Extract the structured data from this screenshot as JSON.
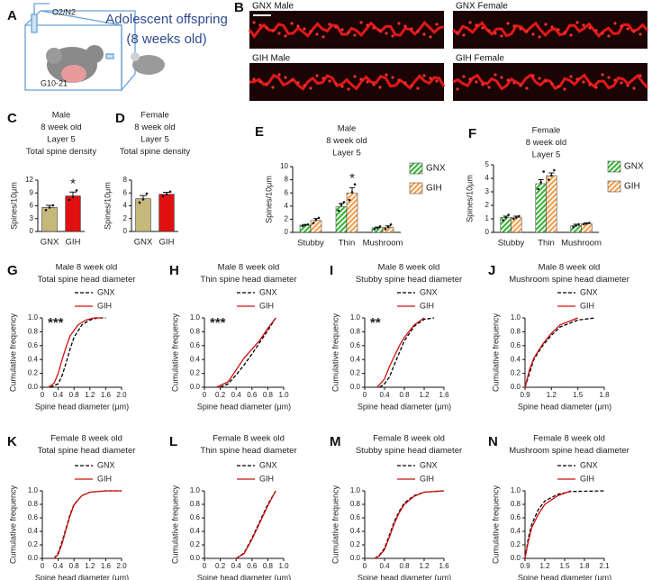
{
  "panel_a": {
    "letter": "A",
    "gas": "O2/N2",
    "caption": [
      "Adolescent offspring",
      "(8 weeks old)"
    ],
    "gestation": "G10-21"
  },
  "panel_b": {
    "letter": "B",
    "images": [
      "GNX Male",
      "GNX Female",
      "GIH Male",
      "GIH Female"
    ]
  },
  "chart_data": [
    {
      "type": "bar",
      "letter": "C",
      "title": [
        "Male",
        "8 week old",
        "Layer 5",
        "Total spine density"
      ],
      "ylabel": "Spines/10μm",
      "categories": [
        "GNX",
        "GIH"
      ],
      "values": [
        5.6,
        8.3
      ],
      "errors": [
        0.5,
        0.9
      ],
      "points": [
        [
          5.0,
          5.6,
          6.1
        ],
        [
          7.4,
          8.1,
          9.6
        ]
      ],
      "colors": [
        "#c4b87a",
        "#e01010"
      ],
      "ylim": [
        0,
        12
      ],
      "yticks": [
        0,
        3,
        6,
        9,
        12
      ],
      "annotations": [
        {
          "text": "*",
          "x": "GIH"
        }
      ]
    },
    {
      "type": "bar",
      "letter": "D",
      "title": [
        "Female",
        "8 week old",
        "Layer 5",
        "Total spine density"
      ],
      "ylabel": "Spines/10μm",
      "categories": [
        "GNX",
        "GIH"
      ],
      "values": [
        5.1,
        5.8
      ],
      "errors": [
        0.5,
        0.3
      ],
      "points": [
        [
          4.5,
          5.0,
          5.9
        ],
        [
          5.5,
          5.8,
          6.2
        ]
      ],
      "colors": [
        "#c4b87a",
        "#e01010"
      ],
      "ylim": [
        0,
        8
      ],
      "yticks": [
        0,
        2,
        4,
        6,
        8
      ],
      "annotations": []
    },
    {
      "type": "grouped_bar",
      "letter": "E",
      "title": [
        "Male",
        "8 week old",
        "Layer 5"
      ],
      "ylabel": "Spines/10μm",
      "categories": [
        "Stubby",
        "Thin",
        "Mushroom"
      ],
      "hatch": true,
      "series": [
        {
          "name": "GNX",
          "color": "#3cb43c",
          "values": [
            1.1,
            3.9,
            0.7
          ],
          "errors": [
            0.1,
            0.5,
            0.1
          ],
          "points": [
            [
              1.0,
              1.1,
              1.2
            ],
            [
              3.3,
              4.2,
              4.6
            ],
            [
              0.5,
              0.7,
              0.9
            ]
          ]
        },
        {
          "name": "GIH",
          "color": "#f0a050",
          "values": [
            1.8,
            6.0,
            0.8
          ],
          "errors": [
            0.3,
            0.8,
            0.2
          ],
          "points": [
            [
              1.4,
              1.9,
              2.2
            ],
            [
              4.9,
              6.1,
              7.3
            ],
            [
              0.5,
              0.8,
              1.2
            ]
          ]
        }
      ],
      "ylim": [
        0,
        10
      ],
      "yticks": [
        0,
        2,
        4,
        6,
        8,
        10
      ],
      "annotations": [
        {
          "text": "*",
          "x": "Thin",
          "series": "GIH"
        }
      ]
    },
    {
      "type": "grouped_bar",
      "letter": "F",
      "title": [
        "Female",
        "8 week old",
        "Layer 5"
      ],
      "ylabel": "Spines/10μm",
      "categories": [
        "Stubby",
        "Thin",
        "Mushroom"
      ],
      "hatch": true,
      "series": [
        {
          "name": "GNX",
          "color": "#3cb43c",
          "values": [
            1.1,
            3.6,
            0.5
          ],
          "errors": [
            0.1,
            0.3,
            0.1
          ],
          "points": [
            [
              0.9,
              1.1,
              1.3
            ],
            [
              3.2,
              3.7,
              4.5
            ],
            [
              0.4,
              0.5,
              0.6
            ]
          ]
        },
        {
          "name": "GIH",
          "color": "#f0a050",
          "values": [
            1.1,
            4.2,
            0.65
          ],
          "errors": [
            0.1,
            0.2,
            0.05
          ],
          "points": [
            [
              1.0,
              1.1,
              1.2
            ],
            [
              3.9,
              4.2,
              4.6
            ],
            [
              0.6,
              0.65,
              0.7
            ]
          ]
        }
      ],
      "ylim": [
        0,
        5
      ],
      "yticks": [
        0,
        1,
        2,
        3,
        4,
        5
      ],
      "annotations": []
    },
    {
      "type": "line",
      "letter": "G",
      "title": [
        "Male 8 week old",
        "Total spine head diameter"
      ],
      "xlabel": "Spine head diameter (µm)",
      "ylabel": "Cumulative frequency",
      "xlim": [
        0,
        2
      ],
      "xticks": [
        0,
        0.4,
        0.8,
        1.2,
        1.6,
        {
          "value": 2,
          "label": "2.0"
        }
      ],
      "ylim": [
        0,
        1
      ],
      "yticks": [
        {
          "value": 0,
          "label": "0.0"
        },
        0.2,
        0.4,
        0.6,
        0.8,
        {
          "value": 1,
          "label": "1.0"
        }
      ],
      "annotations": [
        {
          "text": "***"
        }
      ],
      "series": [
        {
          "name": "GNX",
          "color": "#000000",
          "style": "dashed",
          "x": [
            0.2,
            0.4,
            0.5,
            0.6,
            0.7,
            0.8,
            1.0,
            1.2,
            1.4,
            1.6
          ],
          "values": [
            0,
            0.05,
            0.17,
            0.35,
            0.55,
            0.72,
            0.9,
            0.97,
            1.0,
            1.0
          ]
        },
        {
          "name": "GIH",
          "color": "#d01010",
          "style": "solid",
          "x": [
            0.15,
            0.3,
            0.4,
            0.5,
            0.6,
            0.7,
            0.9,
            1.1,
            1.3,
            1.5
          ],
          "values": [
            0,
            0.06,
            0.2,
            0.4,
            0.58,
            0.74,
            0.9,
            0.97,
            1.0,
            1.0
          ]
        }
      ]
    },
    {
      "type": "line",
      "letter": "H",
      "title": [
        "Male 8 week old",
        "Thin spine head diameter"
      ],
      "xlabel": "Spine head diameter (µm)",
      "ylabel": "Cumulative frequency",
      "xlim": [
        0,
        1
      ],
      "xticks": [
        0,
        0.2,
        0.4,
        0.6,
        0.8,
        {
          "value": 1,
          "label": "1.0"
        }
      ],
      "ylim": [
        0,
        1
      ],
      "yticks": [
        {
          "value": 0,
          "label": "0.0"
        },
        0.2,
        0.4,
        0.6,
        0.8,
        {
          "value": 1,
          "label": "1.0"
        }
      ],
      "annotations": [
        {
          "text": "***"
        }
      ],
      "series": [
        {
          "name": "GNX",
          "color": "#000000",
          "style": "dashed",
          "x": [
            0.2,
            0.3,
            0.4,
            0.5,
            0.6,
            0.7,
            0.8,
            0.9
          ],
          "values": [
            0,
            0.05,
            0.18,
            0.32,
            0.48,
            0.65,
            0.82,
            1.0
          ]
        },
        {
          "name": "GIH",
          "color": "#d01010",
          "style": "solid",
          "x": [
            0.15,
            0.3,
            0.4,
            0.5,
            0.6,
            0.7,
            0.8,
            0.9
          ],
          "values": [
            0,
            0.08,
            0.25,
            0.42,
            0.55,
            0.68,
            0.85,
            1.0
          ]
        }
      ]
    },
    {
      "type": "line",
      "letter": "I",
      "title": [
        "Male 8 week old",
        "Stubby spine head diameter"
      ],
      "xlabel": "Spine head diameter (µm)",
      "ylabel": "Cumulative frequency",
      "xlim": [
        0,
        1.6
      ],
      "xticks": [
        0,
        0.4,
        0.8,
        1.2,
        1.6
      ],
      "ylim": [
        0,
        1
      ],
      "yticks": [
        {
          "value": 0,
          "label": "0.0"
        },
        0.2,
        0.4,
        0.6,
        0.8,
        {
          "value": 1,
          "label": "1.0"
        }
      ],
      "annotations": [
        {
          "text": "**"
        }
      ],
      "series": [
        {
          "name": "GNX",
          "color": "#000000",
          "style": "dashed",
          "x": [
            0.3,
            0.4,
            0.5,
            0.6,
            0.7,
            0.8,
            1.0,
            1.2,
            1.4
          ],
          "values": [
            0,
            0.05,
            0.15,
            0.33,
            0.5,
            0.67,
            0.88,
            0.98,
            1.0
          ]
        },
        {
          "name": "GIH",
          "color": "#d01010",
          "style": "solid",
          "x": [
            0.25,
            0.4,
            0.5,
            0.6,
            0.7,
            0.8,
            1.0,
            1.2
          ],
          "values": [
            0,
            0.12,
            0.3,
            0.45,
            0.6,
            0.72,
            0.9,
            1.0
          ]
        }
      ]
    },
    {
      "type": "line",
      "letter": "J",
      "title": [
        "Male 8 week old",
        "Mushroom spine head diameter"
      ],
      "xlabel": "Spine head diameter (µm)",
      "ylabel": "Cumulative frequency",
      "xlim": [
        0.9,
        1.8
      ],
      "xticks": [
        0.9,
        1.2,
        1.5,
        1.8
      ],
      "ylim": [
        0,
        1
      ],
      "yticks": [
        {
          "value": 0,
          "label": "0.0"
        },
        0.2,
        0.4,
        0.6,
        0.8,
        {
          "value": 1,
          "label": "1.0"
        }
      ],
      "annotations": [],
      "series": [
        {
          "name": "GNX",
          "color": "#000000",
          "style": "dashed",
          "x": [
            0.9,
            0.95,
            1.0,
            1.1,
            1.2,
            1.3,
            1.5,
            1.7
          ],
          "values": [
            0,
            0.2,
            0.4,
            0.6,
            0.75,
            0.87,
            0.97,
            1.0
          ]
        },
        {
          "name": "GIH",
          "color": "#d01010",
          "style": "solid",
          "x": [
            0.9,
            0.95,
            1.0,
            1.1,
            1.2,
            1.3,
            1.5
          ],
          "values": [
            0,
            0.25,
            0.42,
            0.62,
            0.78,
            0.9,
            1.0
          ]
        }
      ]
    },
    {
      "type": "line",
      "letter": "K",
      "title": [
        "Female 8 week old",
        "Total spine head diameter"
      ],
      "xlabel": "Spine head diameter (µm)",
      "ylabel": "Cumulative frequency",
      "xlim": [
        0,
        2
      ],
      "xticks": [
        0,
        0.4,
        0.8,
        1.2,
        1.6,
        {
          "value": 2,
          "label": "2.0"
        }
      ],
      "ylim": [
        0,
        1
      ],
      "yticks": [
        {
          "value": 0,
          "label": "0.0"
        },
        0.2,
        0.4,
        0.6,
        0.8,
        {
          "value": 1,
          "label": "1.0"
        }
      ],
      "annotations": [],
      "series": [
        {
          "name": "GNX",
          "color": "#000000",
          "style": "dashed",
          "x": [
            0.3,
            0.4,
            0.5,
            0.6,
            0.7,
            0.8,
            1.0,
            1.2,
            1.6,
            2.0
          ],
          "values": [
            0,
            0.08,
            0.25,
            0.45,
            0.65,
            0.8,
            0.93,
            0.98,
            1.0,
            1.0
          ]
        },
        {
          "name": "GIH",
          "color": "#d01010",
          "style": "solid",
          "x": [
            0.3,
            0.4,
            0.5,
            0.6,
            0.7,
            0.8,
            1.0,
            1.2,
            1.6,
            2.0
          ],
          "values": [
            0,
            0.06,
            0.22,
            0.43,
            0.63,
            0.79,
            0.93,
            0.98,
            1.0,
            1.0
          ]
        }
      ]
    },
    {
      "type": "line",
      "letter": "L",
      "title": [
        "Female 8 week old",
        "Thin spine head diameter"
      ],
      "xlabel": "Spine head diameter (µm)",
      "ylabel": "Cumulative frequency",
      "xlim": [
        0,
        1
      ],
      "xticks": [
        0,
        0.2,
        0.4,
        0.6,
        0.8,
        {
          "value": 1,
          "label": "1.0"
        }
      ],
      "ylim": [
        0,
        1
      ],
      "yticks": [
        {
          "value": 0,
          "label": "0.0"
        },
        0.2,
        0.4,
        0.6,
        0.8,
        {
          "value": 1,
          "label": "1.0"
        }
      ],
      "annotations": [],
      "series": [
        {
          "name": "GNX",
          "color": "#000000",
          "style": "dashed",
          "x": [
            0.4,
            0.5,
            0.6,
            0.7,
            0.8,
            0.9
          ],
          "values": [
            0,
            0.08,
            0.3,
            0.55,
            0.8,
            1.0
          ]
        },
        {
          "name": "GIH",
          "color": "#d01010",
          "style": "solid",
          "x": [
            0.4,
            0.5,
            0.6,
            0.7,
            0.8,
            0.9
          ],
          "values": [
            0,
            0.07,
            0.28,
            0.53,
            0.78,
            1.0
          ]
        }
      ]
    },
    {
      "type": "line",
      "letter": "M",
      "title": [
        "Female 8 week old",
        "Stubby spine head diameter"
      ],
      "xlabel": "Spine head diameter (µm)",
      "ylabel": "Cumulative frequency",
      "xlim": [
        0,
        1.6
      ],
      "xticks": [
        0,
        0.4,
        0.8,
        1.2,
        1.6
      ],
      "ylim": [
        0,
        1
      ],
      "yticks": [
        {
          "value": 0,
          "label": "0.0"
        },
        0.2,
        0.4,
        0.6,
        0.8,
        {
          "value": 1,
          "label": "1.0"
        }
      ],
      "annotations": [],
      "series": [
        {
          "name": "GNX",
          "color": "#000000",
          "style": "dashed",
          "x": [
            0.2,
            0.3,
            0.4,
            0.5,
            0.6,
            0.7,
            0.8,
            1.0,
            1.2,
            1.6
          ],
          "values": [
            0,
            0.05,
            0.15,
            0.35,
            0.55,
            0.7,
            0.82,
            0.93,
            0.98,
            1.0
          ]
        },
        {
          "name": "GIH",
          "color": "#d01010",
          "style": "solid",
          "x": [
            0.2,
            0.3,
            0.4,
            0.5,
            0.6,
            0.7,
            0.8,
            1.0,
            1.2,
            1.6
          ],
          "values": [
            0,
            0.04,
            0.13,
            0.32,
            0.52,
            0.68,
            0.8,
            0.92,
            0.98,
            1.0
          ]
        }
      ]
    },
    {
      "type": "line",
      "letter": "N",
      "title": [
        "Female 8 week old",
        "Mushroom spine head diameter"
      ],
      "xlabel": "Spine head diameter (µm)",
      "ylabel": "Cumulative frequency",
      "xlim": [
        0.9,
        2.1
      ],
      "xticks": [
        0.9,
        1.2,
        1.5,
        1.8,
        2.1
      ],
      "ylim": [
        0,
        1
      ],
      "yticks": [
        {
          "value": 0,
          "label": "0.0"
        },
        0.2,
        0.4,
        0.6,
        0.8,
        {
          "value": 1,
          "label": "1.0"
        }
      ],
      "annotations": [],
      "series": [
        {
          "name": "GNX",
          "color": "#000000",
          "style": "dashed",
          "x": [
            0.9,
            0.95,
            1.0,
            1.1,
            1.2,
            1.4,
            1.6,
            2.1
          ],
          "values": [
            0,
            0.3,
            0.5,
            0.72,
            0.85,
            0.95,
            0.99,
            1.0
          ]
        },
        {
          "name": "GIH",
          "color": "#d01010",
          "style": "solid",
          "x": [
            0.9,
            0.95,
            1.0,
            1.1,
            1.2,
            1.4,
            1.6
          ],
          "values": [
            0,
            0.25,
            0.45,
            0.65,
            0.8,
            0.93,
            1.0
          ]
        }
      ]
    }
  ]
}
